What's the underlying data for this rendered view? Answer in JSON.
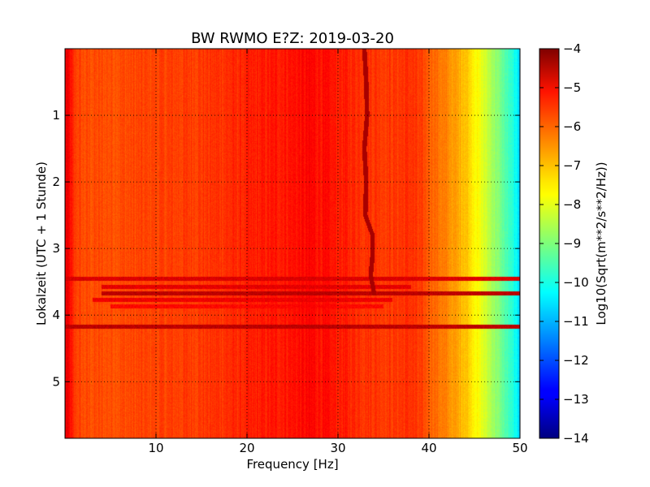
{
  "chart_data": {
    "type": "heatmap",
    "title": "BW RWMO E?Z: 2019-03-20",
    "xlabel": "Frequency [Hz]",
    "ylabel": "Lokalzeit (UTC + 1 Stunde)",
    "xlim": [
      0,
      50
    ],
    "ylim": [
      5.85,
      0
    ],
    "y_inverted": true,
    "x_ticks": [
      10,
      20,
      30,
      40,
      50
    ],
    "x_tick_labels": [
      "10",
      "20",
      "30",
      "40",
      "50"
    ],
    "y_ticks": [
      1,
      2,
      3,
      4,
      5
    ],
    "y_tick_labels": [
      "1",
      "2",
      "3",
      "4",
      "5"
    ],
    "grid": true,
    "colormap": "jet",
    "colorbar": {
      "label": "Log10(Sqrt(m**2/s**2/Hz))",
      "range": [
        -14,
        -4
      ],
      "ticks": [
        -4,
        -5,
        -6,
        -7,
        -8,
        -9,
        -10,
        -11,
        -12,
        -13,
        -14
      ],
      "tick_labels": [
        "−4",
        "−5",
        "−6",
        "−7",
        "−8",
        "−9",
        "−10",
        "−11",
        "−12",
        "−13",
        "−14"
      ]
    },
    "spectral_profile": {
      "frequency_hz": [
        0,
        0.5,
        1,
        2,
        5,
        10,
        15,
        20,
        25,
        27,
        30,
        33,
        36,
        38,
        40,
        42,
        44,
        45,
        46,
        47,
        48,
        49,
        50
      ],
      "log10_amplitude": [
        -5.0,
        -5.3,
        -5.8,
        -6.0,
        -6.0,
        -5.9,
        -5.8,
        -5.6,
        -5.4,
        -5.3,
        -5.5,
        -5.7,
        -5.8,
        -5.7,
        -6.1,
        -6.6,
        -7.1,
        -7.6,
        -8.1,
        -8.6,
        -9.2,
        -9.8,
        -10.6
      ]
    },
    "narrowband_line": {
      "time_h": [
        0.0,
        0.5,
        1.0,
        1.5,
        2.0,
        2.5,
        2.8,
        3.1,
        3.4,
        3.7
      ],
      "frequency_hz": [
        32.9,
        33.1,
        33.2,
        32.9,
        33.1,
        33.0,
        33.8,
        33.8,
        33.6,
        34.0
      ],
      "log10_amplitude": -4.4
    },
    "noise_bursts": [
      {
        "time_h": 3.45,
        "fmin_hz": 0,
        "fmax_hz": 50,
        "log10_amplitude": -4.9
      },
      {
        "time_h": 3.58,
        "fmin_hz": 4,
        "fmax_hz": 38,
        "log10_amplitude": -5.0
      },
      {
        "time_h": 3.68,
        "fmin_hz": 4,
        "fmax_hz": 50,
        "log10_amplitude": -4.6
      },
      {
        "time_h": 3.77,
        "fmin_hz": 3,
        "fmax_hz": 36,
        "log10_amplitude": -5.1
      },
      {
        "time_h": 3.87,
        "fmin_hz": 5,
        "fmax_hz": 35,
        "log10_amplitude": -5.3
      },
      {
        "time_h": 4.17,
        "fmin_hz": 0,
        "fmax_hz": 50,
        "log10_amplitude": -4.6
      }
    ]
  }
}
